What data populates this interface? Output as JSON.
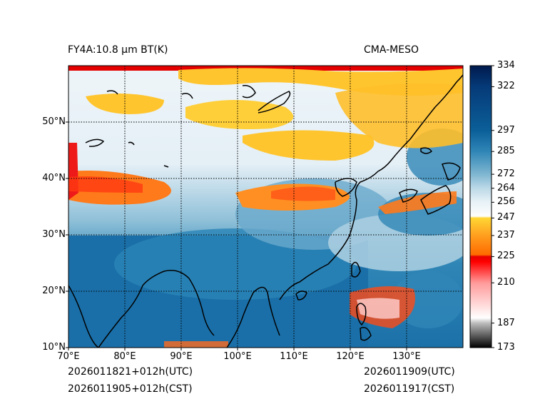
{
  "title_left": "FY4A:10.8 µm BT(K)",
  "title_right": "CMA-MESO",
  "init_utc": "2026011821+012h(UTC)",
  "init_cst": "2026011905+012h(CST)",
  "valid_utc": "2026011909(UTC)",
  "valid_cst": "2026011917(CST)",
  "map": {
    "lon_ticks": [
      {
        "value": 70,
        "label": "70°E"
      },
      {
        "value": 80,
        "label": "80°E"
      },
      {
        "value": 90,
        "label": "90°E"
      },
      {
        "value": 100,
        "label": "100°E"
      },
      {
        "value": 110,
        "label": "110°E"
      },
      {
        "value": 120,
        "label": "120°E"
      },
      {
        "value": 130,
        "label": "130°E"
      }
    ],
    "lat_ticks": [
      {
        "value": 10,
        "label": "10°N"
      },
      {
        "value": 20,
        "label": "20°N"
      },
      {
        "value": 30,
        "label": "30°N"
      },
      {
        "value": 40,
        "label": "40°N"
      },
      {
        "value": 50,
        "label": "50°N"
      }
    ],
    "lon_range": [
      70,
      140
    ],
    "lat_range": [
      10,
      60
    ]
  },
  "colorbar": {
    "ticks": [
      "334",
      "322",
      "297",
      "285",
      "272",
      "264",
      "256",
      "247",
      "237",
      "225",
      "210",
      "187",
      "173"
    ],
    "stops": [
      {
        "value": 173,
        "color": "#000000"
      },
      {
        "value": 187,
        "color": "#bdbdbd"
      },
      {
        "value": 190,
        "color": "#ffffff"
      },
      {
        "value": 210,
        "color": "#ff9a9a"
      },
      {
        "value": 222,
        "color": "#ff0000"
      },
      {
        "value": 225,
        "color": "#e60000"
      },
      {
        "value": 226,
        "color": "#ff6a00"
      },
      {
        "value": 237,
        "color": "#ff9e1f"
      },
      {
        "value": 247,
        "color": "#ffd633"
      },
      {
        "value": 248,
        "color": "#fdfdfd"
      },
      {
        "value": 256,
        "color": "#e8f2f7"
      },
      {
        "value": 264,
        "color": "#bcd9e7"
      },
      {
        "value": 272,
        "color": "#7fb6d1"
      },
      {
        "value": 285,
        "color": "#2f86b6"
      },
      {
        "value": 297,
        "color": "#0b5f99"
      },
      {
        "value": 322,
        "color": "#053a78"
      },
      {
        "value": 334,
        "color": "#001a4d"
      }
    ]
  }
}
